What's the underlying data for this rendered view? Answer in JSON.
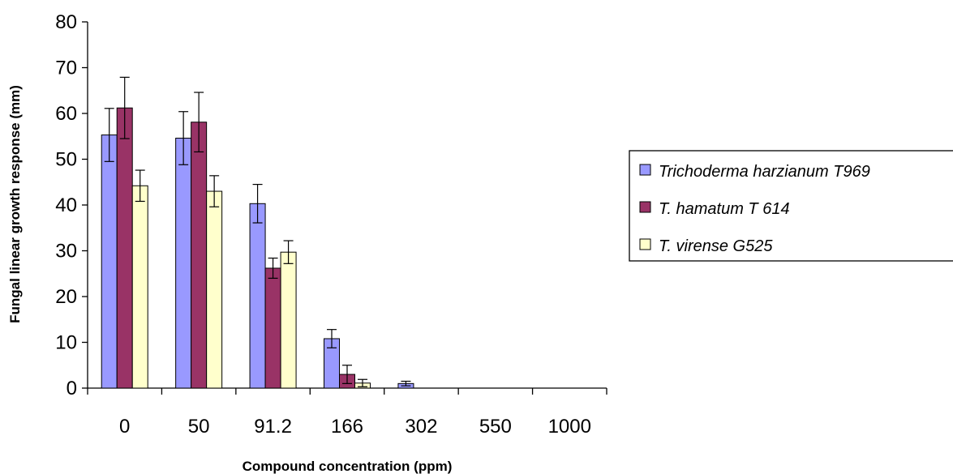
{
  "chart_data": {
    "type": "bar",
    "title": "",
    "xlabel": "Compound concentration (ppm)",
    "ylabel": "Fungal linear growth response (mm)",
    "ylim": [
      0,
      80
    ],
    "yticks": [
      0,
      10,
      20,
      30,
      40,
      50,
      60,
      70,
      80
    ],
    "categories": [
      "0",
      "50",
      "91.2",
      "166",
      "302",
      "550",
      "1000"
    ],
    "series": [
      {
        "name": "Trichoderma harzianum T969",
        "color": "#9999ff",
        "values": [
          55.3,
          54.6,
          40.3,
          10.8,
          1.0,
          0,
          0
        ],
        "errors": [
          5.8,
          5.8,
          4.2,
          2.0,
          0.5,
          0,
          0
        ]
      },
      {
        "name": "T. hamatum T 614",
        "color": "#993366",
        "values": [
          61.2,
          58.1,
          26.2,
          3.0,
          0,
          0,
          0
        ],
        "errors": [
          6.7,
          6.5,
          2.2,
          2.0,
          0,
          0,
          0
        ]
      },
      {
        "name": "T. virense G525",
        "color": "#ffffcc",
        "values": [
          44.2,
          43.0,
          29.7,
          1.1,
          0,
          0,
          0
        ],
        "errors": [
          3.4,
          3.4,
          2.5,
          0.8,
          0,
          0,
          0
        ]
      }
    ],
    "grid": false,
    "legend_position": "right"
  }
}
